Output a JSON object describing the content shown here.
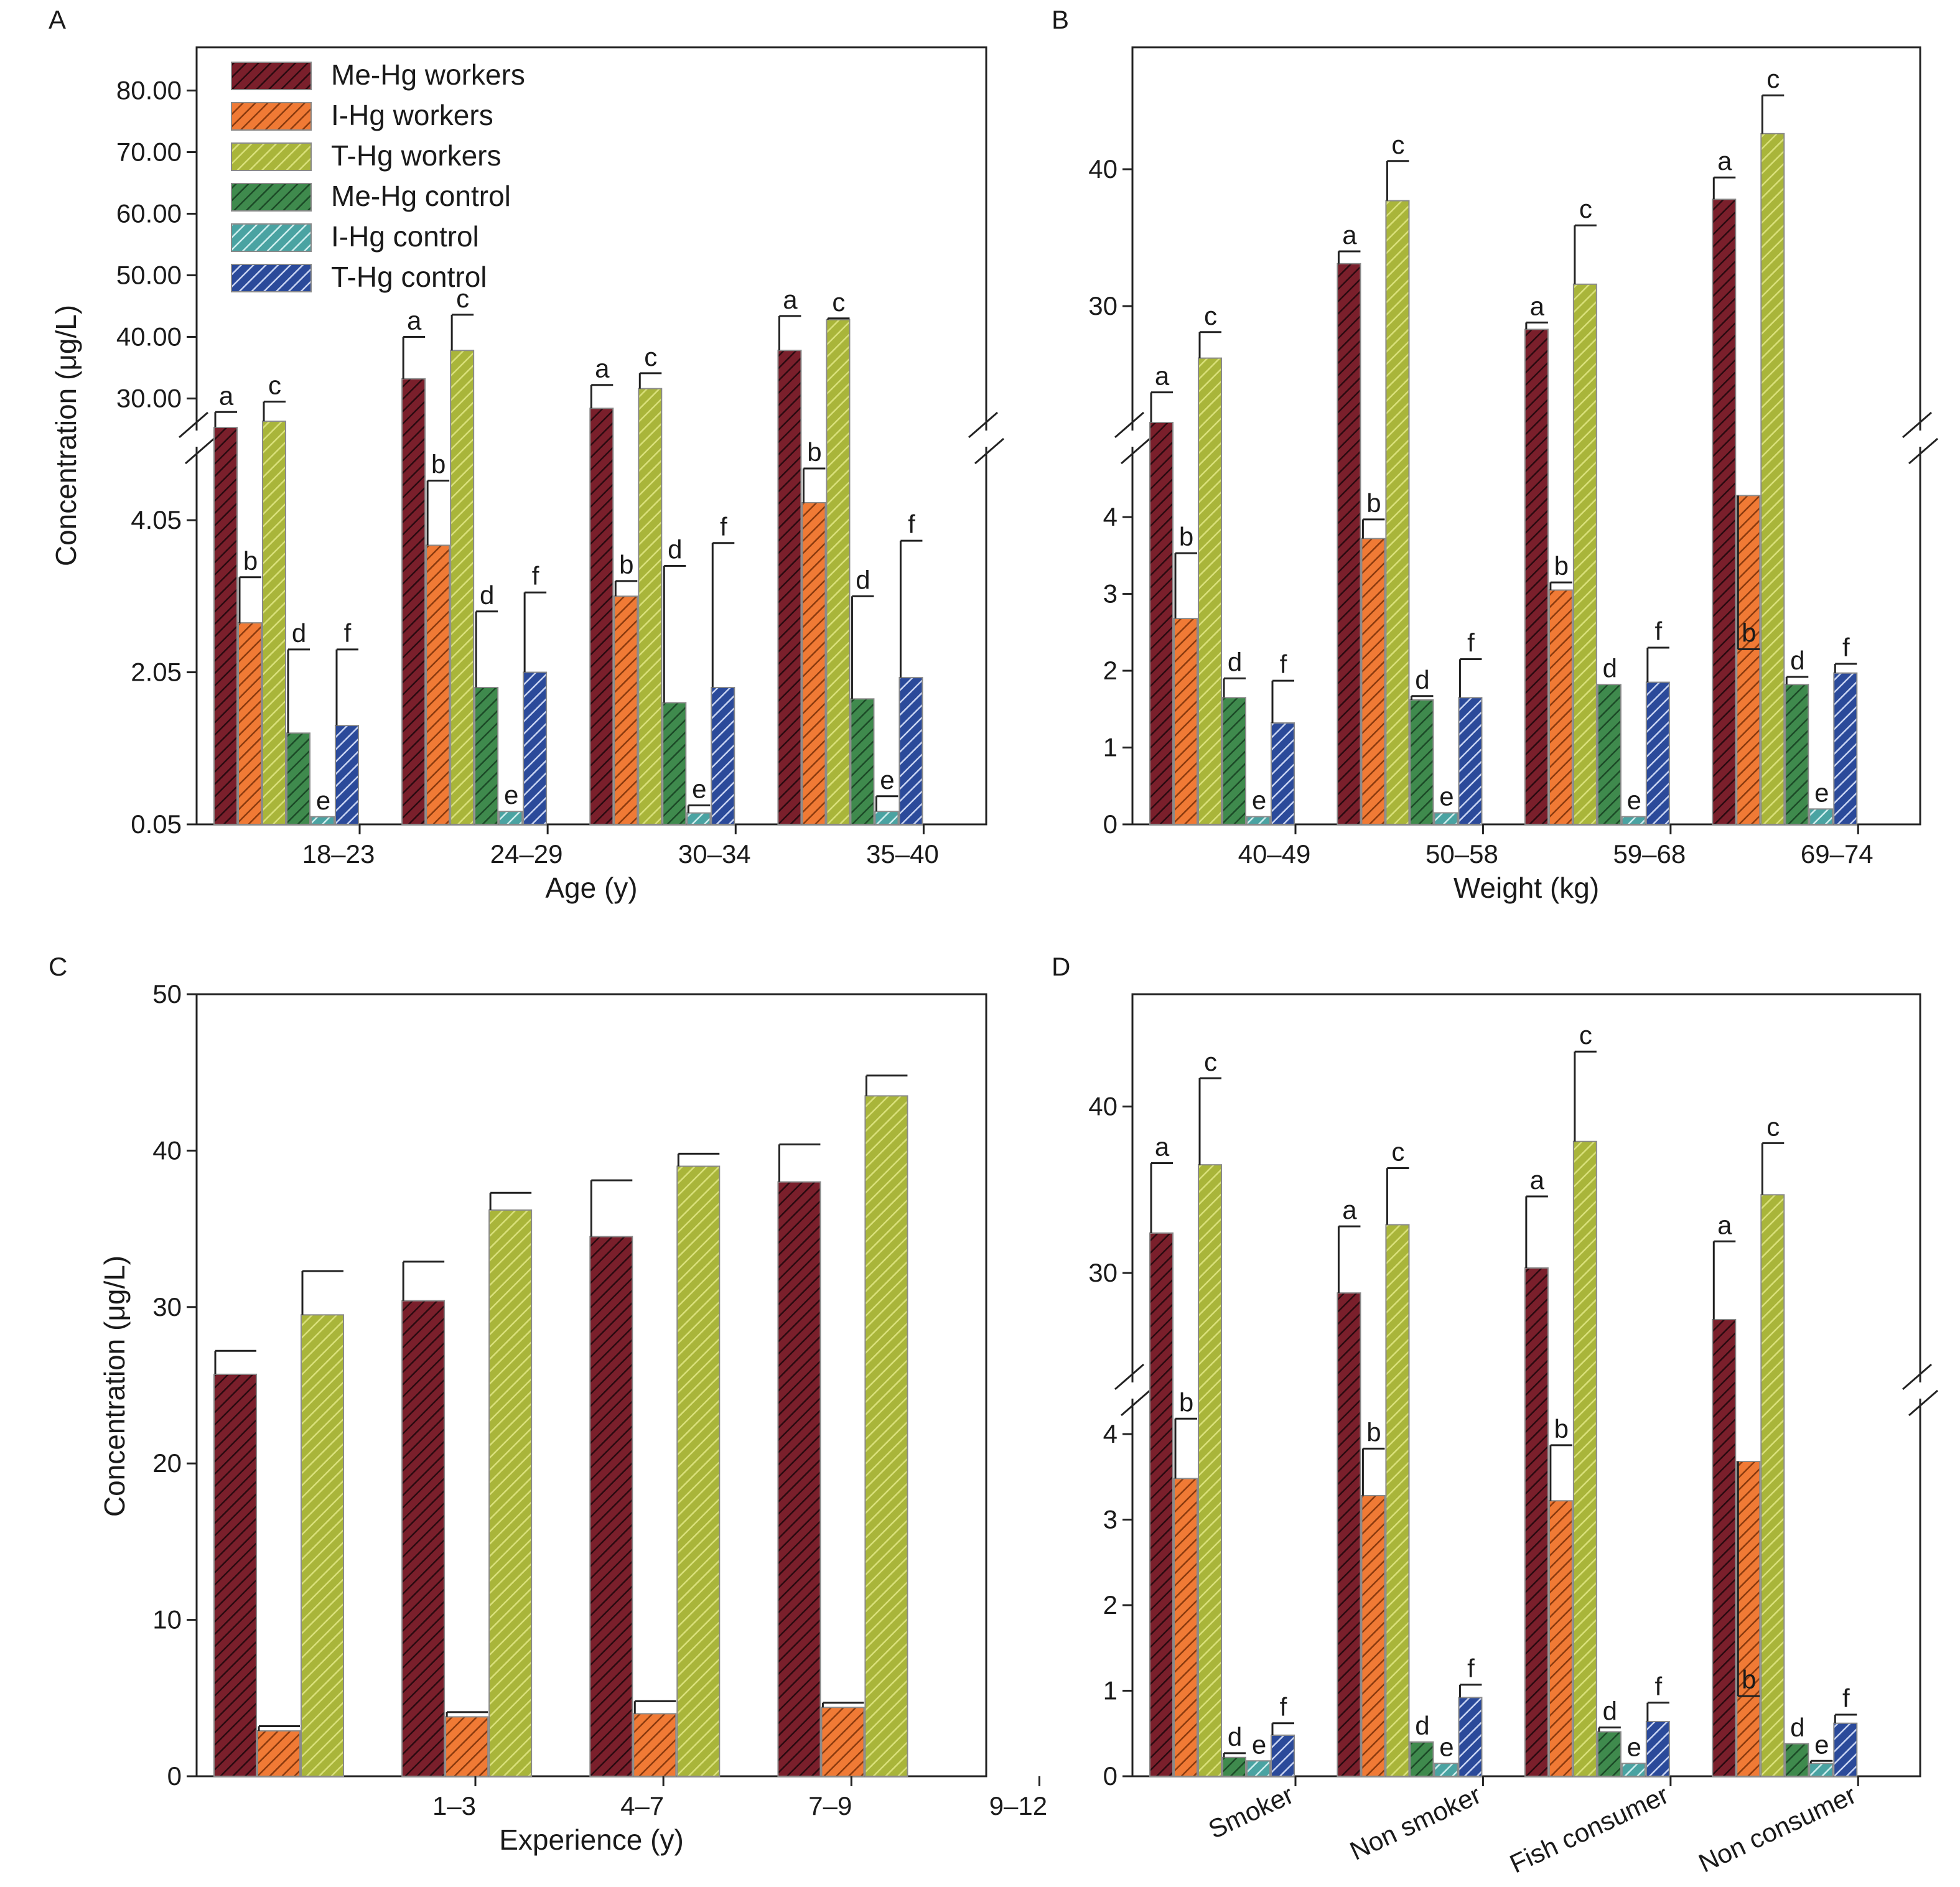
{
  "figure": {
    "ylabel": "Concentration (μg/L)"
  },
  "series": [
    {
      "key": "mehg_w",
      "name": "Me-Hg workers",
      "color": "#7a1f2b",
      "hatch": "#2a0a10"
    },
    {
      "key": "ihg_w",
      "name": "I-Hg workers",
      "color": "#f07a35",
      "hatch": "#8a3a0e"
    },
    {
      "key": "thg_w",
      "name": "T-Hg workers",
      "color": "#a9b53a",
      "hatch": "#d9e07a"
    },
    {
      "key": "mehg_c",
      "name": "Me-Hg control",
      "color": "#3f8a4d",
      "hatch": "#1c4a27"
    },
    {
      "key": "ihg_c",
      "name": "I-Hg control",
      "color": "#4aa3a2",
      "hatch": "#cfeeee"
    },
    {
      "key": "thg_c",
      "name": "T-Hg control",
      "color": "#2b4a9a",
      "hatch": "#c9d4f2"
    }
  ],
  "chart_data": [
    {
      "id": "A",
      "panel_label": "A",
      "type": "bar",
      "xlabel": "Age (y)",
      "ylabel": "Concentration (μg/L)",
      "categories": [
        "18–23",
        "24–29",
        "30–34",
        "35–40"
      ],
      "broken_axis": true,
      "lower_ylim": [
        0.05,
        5.0
      ],
      "upper_ylim": [
        25.0,
        85.0
      ],
      "lower_ticks": [
        {
          "v": 0.05,
          "label": "0.05"
        },
        {
          "v": 2.05,
          "label": "2.05"
        },
        {
          "v": 4.05,
          "label": "4.05"
        }
      ],
      "upper_ticks": [
        {
          "v": 30,
          "label": "30.00"
        },
        {
          "v": 40,
          "label": "40.00"
        },
        {
          "v": 50,
          "label": "50.00"
        },
        {
          "v": 60,
          "label": "60.00"
        },
        {
          "v": 70,
          "label": "70.00"
        },
        {
          "v": 80,
          "label": "80.00"
        }
      ],
      "legend": true,
      "series": [
        {
          "key": "mehg_w",
          "values": [
            25.3,
            33.2,
            28.4,
            37.8
          ],
          "errors": [
            2.5,
            6.8,
            3.8,
            5.6
          ],
          "sig": [
            "a",
            "a",
            "a",
            "a"
          ]
        },
        {
          "key": "ihg_w",
          "values": [
            2.7,
            3.72,
            3.05,
            4.28
          ],
          "errors": [
            0.6,
            0.85,
            0.2,
            0.45
          ],
          "sig": [
            "b",
            "b",
            "b",
            "b"
          ]
        },
        {
          "key": "thg_w",
          "values": [
            26.3,
            37.8,
            31.6,
            42.8
          ],
          "errors": [
            3.2,
            5.8,
            2.5,
            0.2
          ],
          "sig": [
            "c",
            "c",
            "c",
            "c"
          ]
        },
        {
          "key": "mehg_c",
          "values": [
            1.25,
            1.85,
            1.65,
            1.7
          ],
          "errors": [
            1.1,
            1.0,
            1.8,
            1.35
          ],
          "sig": [
            "d",
            "d",
            "d",
            "d"
          ]
        },
        {
          "key": "ihg_c",
          "values": [
            0.15,
            0.22,
            0.2,
            0.22
          ],
          "errors": [
            0.0,
            0.0,
            0.1,
            0.2
          ],
          "sig": [
            "e",
            "e",
            "e",
            "e"
          ]
        },
        {
          "key": "thg_c",
          "values": [
            1.35,
            2.05,
            1.85,
            1.98
          ],
          "errors": [
            1.0,
            1.05,
            1.9,
            1.8
          ],
          "sig": [
            "f",
            "f",
            "f",
            "f"
          ]
        }
      ]
    },
    {
      "id": "B",
      "panel_label": "B",
      "type": "bar",
      "xlabel": "Weight (kg)",
      "ylabel": "",
      "categories": [
        "40–49",
        "50–58",
        "59–68",
        "69–74"
      ],
      "broken_axis": true,
      "lower_ylim": [
        0,
        4.9
      ],
      "upper_ylim": [
        21.0,
        48.0
      ],
      "lower_ticks": [
        {
          "v": 0,
          "label": "0"
        },
        {
          "v": 1,
          "label": "1"
        },
        {
          "v": 2,
          "label": "2"
        },
        {
          "v": 3,
          "label": "3"
        },
        {
          "v": 4,
          "label": "4"
        }
      ],
      "upper_ticks": [
        {
          "v": 30,
          "label": "30"
        },
        {
          "v": 40,
          "label": "40"
        }
      ],
      "legend": false,
      "series": [
        {
          "key": "mehg_w",
          "values": [
            21.5,
            33.1,
            28.3,
            37.8
          ],
          "errors": [
            2.2,
            0.9,
            0.5,
            1.6
          ],
          "sig": [
            "a",
            "a",
            "a",
            "a"
          ]
        },
        {
          "key": "ihg_w",
          "values": [
            2.68,
            3.72,
            3.05,
            4.28
          ],
          "errors": [
            0.85,
            0.25,
            0.1,
            0.65
          ],
          "sig": [
            "b",
            "b",
            "b",
            "b"
          ]
        },
        {
          "key": "thg_w",
          "values": [
            26.2,
            37.7,
            31.6,
            42.6
          ],
          "errors": [
            1.9,
            2.9,
            4.3,
            2.8
          ],
          "sig": [
            "c",
            "c",
            "c",
            "c"
          ]
        },
        {
          "key": "mehg_c",
          "values": [
            1.65,
            1.62,
            1.82,
            1.82
          ],
          "errors": [
            0.25,
            0.05,
            0.0,
            0.1
          ],
          "sig": [
            "d",
            "d",
            "d",
            "d"
          ]
        },
        {
          "key": "ihg_c",
          "values": [
            0.1,
            0.15,
            0.1,
            0.2
          ],
          "errors": [
            0.0,
            0.0,
            0.0,
            0.0
          ],
          "sig": [
            "e",
            "e",
            "e",
            "e"
          ]
        },
        {
          "key": "thg_c",
          "values": [
            1.32,
            1.65,
            1.85,
            1.97
          ],
          "errors": [
            0.55,
            0.5,
            0.45,
            0.12
          ],
          "sig": [
            "f",
            "f",
            "f",
            "f"
          ]
        }
      ]
    },
    {
      "id": "C",
      "panel_label": "C",
      "type": "bar",
      "xlabel": "Experience (y)",
      "ylabel": "Concentration (μg/L)",
      "categories": [
        "1–3",
        "4–7",
        "7–9",
        "9–12"
      ],
      "broken_axis": false,
      "ylim": [
        0,
        50
      ],
      "ticks": [
        {
          "v": 0,
          "label": "0"
        },
        {
          "v": 10,
          "label": "10"
        },
        {
          "v": 20,
          "label": "20"
        },
        {
          "v": 30,
          "label": "30"
        },
        {
          "v": 40,
          "label": "40"
        },
        {
          "v": 50,
          "label": "50"
        }
      ],
      "legend": false,
      "series": [
        {
          "key": "mehg_w",
          "values": [
            25.7,
            30.4,
            34.5,
            38.0
          ],
          "errors": [
            1.5,
            2.5,
            3.6,
            2.4
          ],
          "sig": []
        },
        {
          "key": "ihg_w",
          "values": [
            2.9,
            3.8,
            4.0,
            4.4
          ],
          "errors": [
            0.3,
            0.3,
            0.8,
            0.3
          ],
          "sig": []
        },
        {
          "key": "thg_w",
          "values": [
            29.5,
            36.2,
            39.0,
            43.5
          ],
          "errors": [
            2.8,
            1.1,
            0.8,
            1.3
          ],
          "sig": []
        }
      ]
    },
    {
      "id": "D",
      "panel_label": "D",
      "type": "bar",
      "xlabel": "",
      "ylabel": "",
      "categories": [
        "Smoker",
        "Non smoker",
        "Fish consumer",
        "Non consumer"
      ],
      "rotate_ticks": true,
      "broken_axis": true,
      "lower_ylim": [
        0,
        4.4
      ],
      "upper_ylim": [
        23.5,
        46.0
      ],
      "lower_ticks": [
        {
          "v": 0,
          "label": "0"
        },
        {
          "v": 1,
          "label": "1"
        },
        {
          "v": 2,
          "label": "2"
        },
        {
          "v": 3,
          "label": "3"
        },
        {
          "v": 4,
          "label": "4"
        }
      ],
      "upper_ticks": [
        {
          "v": 30,
          "label": "30"
        },
        {
          "v": 40,
          "label": "40"
        }
      ],
      "legend": false,
      "series": [
        {
          "key": "mehg_w",
          "values": [
            32.4,
            28.8,
            30.3,
            27.2
          ],
          "errors": [
            4.2,
            4.0,
            4.3,
            4.7
          ],
          "sig": [
            "a",
            "a",
            "a",
            "a"
          ]
        },
        {
          "key": "ihg_w",
          "values": [
            3.48,
            3.28,
            3.22,
            3.68
          ],
          "errors": [
            0.7,
            0.55,
            0.65,
            0.9
          ],
          "sig": [
            "b",
            "b",
            "b",
            "b"
          ]
        },
        {
          "key": "thg_w",
          "values": [
            36.5,
            32.9,
            37.9,
            34.7
          ],
          "errors": [
            5.2,
            3.4,
            5.4,
            3.1
          ],
          "sig": [
            "c",
            "c",
            "c",
            "c"
          ]
        },
        {
          "key": "mehg_c",
          "values": [
            0.22,
            0.4,
            0.52,
            0.38
          ],
          "errors": [
            0.05,
            0.0,
            0.05,
            0.0
          ],
          "sig": [
            "d",
            "d",
            "d",
            "d"
          ]
        },
        {
          "key": "ihg_c",
          "values": [
            0.18,
            0.15,
            0.15,
            0.15
          ],
          "errors": [
            0.0,
            0.0,
            0.0,
            0.03
          ],
          "sig": [
            "e",
            "e",
            "e",
            "e"
          ]
        },
        {
          "key": "thg_c",
          "values": [
            0.48,
            0.92,
            0.64,
            0.62
          ],
          "errors": [
            0.14,
            0.15,
            0.22,
            0.1
          ],
          "sig": [
            "f",
            "f",
            "f",
            "f"
          ]
        }
      ]
    }
  ]
}
